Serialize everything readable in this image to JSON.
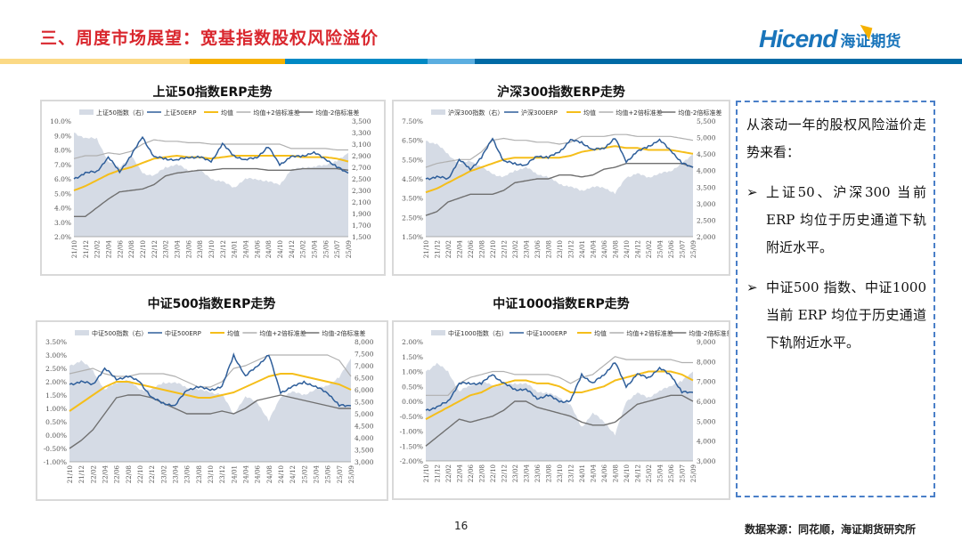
{
  "header": {
    "title": "三、周度市场展望：宽基指数股权风险溢价",
    "logo_en": "Hicend",
    "logo_cn": "海证期货"
  },
  "colors": {
    "index_fill": "#d5dbe5",
    "erp": "#2e5e9a",
    "mean": "#f5be1a",
    "upper": "#b0b0b0",
    "lower": "#707070",
    "accent": "#d9272e"
  },
  "x_ticks": [
    "21/10",
    "21/12",
    "22/02",
    "22/04",
    "22/06",
    "22/08",
    "22/10",
    "22/12",
    "23/02",
    "23/04",
    "23/06",
    "23/08",
    "23/10",
    "23/12",
    "24/01",
    "24/04",
    "24/06",
    "24/08",
    "24/10",
    "24/12",
    "25/02",
    "25/04",
    "25/06",
    "25/07",
    "25/09"
  ],
  "chart_data": [
    {
      "type": "line",
      "title": "上证50指数ERP走势",
      "legend": [
        "上证50指数（右）",
        "上证50ERP",
        "均值",
        "均值+2倍标准差",
        "均值-2倍标准差"
      ],
      "ylim": [
        2,
        10
      ],
      "yticks": [
        "10.0%",
        "9.0%",
        "8.0%",
        "7.0%",
        "6.0%",
        "5.0%",
        "4.0%",
        "3.0%",
        "2.0%"
      ],
      "y2lim": [
        1500,
        3500
      ],
      "y2ticks": [
        "3,500",
        "3,300",
        "3,100",
        "2,900",
        "2,700",
        "2,500",
        "2,300",
        "2,100",
        "1,900",
        "1,700",
        "1,500"
      ],
      "index": [
        3300,
        3200,
        3200,
        2800,
        2700,
        2900,
        2600,
        2550,
        2700,
        2750,
        2650,
        2650,
        2500,
        2450,
        2350,
        2500,
        2500,
        2450,
        2400,
        2650,
        2700,
        2700,
        2750,
        2800,
        2950
      ],
      "erp": [
        6.0,
        6.4,
        6.5,
        7.5,
        6.5,
        7.6,
        8.9,
        7.5,
        7.4,
        7.3,
        7.5,
        7.5,
        7.2,
        8.4,
        7.6,
        7.3,
        7.5,
        8.2,
        7.0,
        7.5,
        7.6,
        7.8,
        7.4,
        6.8,
        6.4
      ],
      "mean": [
        5.2,
        5.5,
        5.9,
        6.3,
        6.6,
        6.8,
        7.1,
        7.4,
        7.5,
        7.6,
        7.5,
        7.5,
        7.4,
        7.5,
        7.6,
        7.6,
        7.6,
        7.6,
        7.6,
        7.6,
        7.5,
        7.5,
        7.5,
        7.4,
        7.2
      ],
      "upper": [
        7.4,
        7.6,
        7.6,
        7.8,
        7.7,
        7.9,
        8.4,
        8.7,
        8.6,
        8.6,
        8.5,
        8.5,
        8.4,
        8.4,
        8.4,
        8.4,
        8.4,
        8.4,
        8.4,
        8.1,
        8.1,
        8.1,
        8.1,
        8.0,
        8.0
      ],
      "lower": [
        3.4,
        3.4,
        4.0,
        4.6,
        5.1,
        5.2,
        5.3,
        5.6,
        6.2,
        6.4,
        6.5,
        6.6,
        6.6,
        6.7,
        6.7,
        6.7,
        6.7,
        6.6,
        6.6,
        6.6,
        6.7,
        6.7,
        6.7,
        6.7,
        6.6
      ]
    },
    {
      "type": "line",
      "title": "沪深300指数ERP走势",
      "legend": [
        "沪深300指数（右）",
        "沪深300ERP",
        "均值",
        "均值+2倍标准差",
        "均值-2倍标准差"
      ],
      "ylim": [
        1.5,
        7.5
      ],
      "yticks": [
        "7.50%",
        "6.50%",
        "5.50%",
        "4.50%",
        "3.50%",
        "2.50%",
        "1.50%"
      ],
      "y2lim": [
        2000,
        5500
      ],
      "y2ticks": [
        "5,500",
        "5,000",
        "4,500",
        "4,000",
        "3,500",
        "3,000",
        "2,500",
        "2,000"
      ],
      "index": [
        4900,
        4800,
        4500,
        4200,
        4300,
        4100,
        3900,
        3800,
        4000,
        4100,
        3900,
        3800,
        3600,
        3500,
        3400,
        3500,
        3500,
        3300,
        3800,
        3900,
        3800,
        3900,
        4000,
        4200,
        4500
      ],
      "erp": [
        4.5,
        4.6,
        4.5,
        5.5,
        5.0,
        5.6,
        6.6,
        5.4,
        5.3,
        5.2,
        5.7,
        5.6,
        5.9,
        6.5,
        6.4,
        6.0,
        6.1,
        6.6,
        5.4,
        5.9,
        6.2,
        6.5,
        6.0,
        5.3,
        5.1
      ],
      "mean": [
        3.8,
        4.0,
        4.3,
        4.6,
        4.9,
        5.1,
        5.3,
        5.5,
        5.6,
        5.6,
        5.6,
        5.6,
        5.6,
        5.7,
        5.9,
        6.0,
        6.1,
        6.2,
        6.1,
        6.1,
        6.0,
        6.0,
        6.0,
        5.9,
        5.8
      ],
      "upper": [
        5.1,
        5.3,
        5.4,
        5.5,
        5.5,
        5.9,
        6.5,
        6.6,
        6.5,
        6.5,
        6.4,
        6.4,
        6.3,
        6.4,
        6.7,
        6.7,
        6.7,
        6.8,
        6.8,
        6.7,
        6.7,
        6.7,
        6.7,
        6.6,
        6.5
      ],
      "lower": [
        2.6,
        2.8,
        3.3,
        3.5,
        3.7,
        3.7,
        3.7,
        3.9,
        4.3,
        4.4,
        4.5,
        4.5,
        4.7,
        4.7,
        4.6,
        4.7,
        5.0,
        5.1,
        5.3,
        5.3,
        5.3,
        5.3,
        5.3,
        5.3,
        5.1
      ]
    },
    {
      "type": "line",
      "title": "中证500指数ERP走势",
      "legend": [
        "中证500指数（右）",
        "中证500ERP",
        "均值",
        "均值+2倍标准差",
        "均值-2倍标准差"
      ],
      "ylim": [
        -1,
        3.5
      ],
      "yticks": [
        "3.50%",
        "3.00%",
        "2.50%",
        "2.00%",
        "1.50%",
        "1.00%",
        "0.50%",
        "0.00%",
        "-0.50%",
        "-1.00%"
      ],
      "y2lim": [
        3000,
        8000
      ],
      "y2ticks": [
        "8,000",
        "7,500",
        "7,000",
        "6,500",
        "6,000",
        "5,500",
        "5,000",
        "4,500",
        "4,000",
        "3,500",
        "3,000"
      ],
      "index": [
        7000,
        7200,
        6800,
        6000,
        6300,
        6400,
        6000,
        6000,
        6300,
        6300,
        6100,
        6000,
        5900,
        5800,
        5000,
        5700,
        5500,
        4700,
        5700,
        5900,
        5800,
        6000,
        6200,
        6500,
        7300
      ],
      "erp": [
        1.9,
        2.0,
        1.9,
        2.5,
        2.1,
        2.2,
        2.0,
        1.4,
        1.2,
        1.1,
        1.7,
        1.8,
        1.7,
        1.8,
        3.0,
        2.2,
        2.6,
        3.0,
        1.6,
        1.8,
        2.0,
        1.8,
        1.6,
        1.1,
        1.1
      ],
      "mean": [
        0.9,
        1.2,
        1.5,
        1.8,
        2.0,
        2.0,
        1.9,
        1.8,
        1.7,
        1.6,
        1.5,
        1.4,
        1.4,
        1.5,
        1.6,
        1.8,
        2.0,
        2.2,
        2.3,
        2.3,
        2.2,
        2.1,
        2.0,
        1.9,
        1.7
      ],
      "upper": [
        2.3,
        2.4,
        2.5,
        2.3,
        2.2,
        2.2,
        2.3,
        2.3,
        2.3,
        2.2,
        2.0,
        1.8,
        1.8,
        2.0,
        2.5,
        2.6,
        2.8,
        3.0,
        3.0,
        3.0,
        3.0,
        3.0,
        3.0,
        2.8,
        2.2
      ],
      "lower": [
        -0.5,
        -0.2,
        0.2,
        0.8,
        1.4,
        1.5,
        1.5,
        1.4,
        1.2,
        1.0,
        0.8,
        0.8,
        0.8,
        0.9,
        0.8,
        1.0,
        1.3,
        1.4,
        1.5,
        1.4,
        1.3,
        1.2,
        1.1,
        1.0,
        1.0
      ]
    },
    {
      "type": "line",
      "title": "中证1000指数ERP走势",
      "legend": [
        "中证1000指数（右）",
        "中证1000ERP",
        "均值",
        "均值+2倍标准差",
        "均值-2倍标准差"
      ],
      "ylim": [
        -2,
        2
      ],
      "yticks": [
        "2.00%",
        "1.50%",
        "1.00%",
        "0.50%",
        "0.00%",
        "-0.50%",
        "-1.00%",
        "-1.50%",
        "-2.00%"
      ],
      "y2lim": [
        3000,
        9000
      ],
      "y2ticks": [
        "9,000",
        "8,000",
        "7,000",
        "6,000",
        "5,000",
        "4,000",
        "3,000"
      ],
      "index": [
        7500,
        7900,
        7500,
        6500,
        6800,
        7000,
        6800,
        6800,
        6900,
        6900,
        6500,
        6400,
        6200,
        5800,
        4700,
        5400,
        5000,
        4300,
        6000,
        6400,
        6200,
        6500,
        6800,
        7000,
        7500
      ],
      "erp": [
        -0.3,
        -0.2,
        0.0,
        0.6,
        0.6,
        0.6,
        0.9,
        0.6,
        0.4,
        0.4,
        0.1,
        0.2,
        0.0,
        0.0,
        0.9,
        0.6,
        0.9,
        1.3,
        0.5,
        0.9,
        0.8,
        1.1,
        0.9,
        0.3,
        0.3
      ],
      "mean": [
        -0.6,
        -0.4,
        -0.2,
        0.0,
        0.2,
        0.3,
        0.5,
        0.6,
        0.7,
        0.7,
        0.6,
        0.6,
        0.5,
        0.3,
        0.3,
        0.4,
        0.5,
        0.7,
        0.8,
        0.9,
        1.0,
        1.0,
        1.0,
        0.9,
        0.7
      ],
      "upper": [
        0.2,
        0.2,
        0.2,
        0.6,
        0.8,
        0.9,
        1.0,
        1.0,
        0.9,
        0.9,
        0.9,
        0.9,
        0.8,
        0.6,
        0.8,
        0.9,
        1.2,
        1.5,
        1.4,
        1.4,
        1.4,
        1.4,
        1.4,
        1.3,
        1.3
      ],
      "lower": [
        -1.5,
        -1.2,
        -0.9,
        -0.6,
        -0.7,
        -0.6,
        -0.5,
        -0.3,
        0.0,
        0.0,
        -0.2,
        -0.3,
        -0.4,
        -0.5,
        -0.7,
        -0.8,
        -0.8,
        -0.7,
        -0.4,
        -0.1,
        0.0,
        0.1,
        0.2,
        0.2,
        0.0
      ]
    }
  ],
  "summary": {
    "intro": "从滚动一年的股权风险溢价走势来看：",
    "bullet_mark": "➢",
    "bullets": [
      "上证50、沪深300 当前ERP 均位于历史通道下轨附近水平。",
      "中证500 指数、中证1000当前 ERP 均位于历史通道下轨附近水平。"
    ]
  },
  "footer": {
    "page": "16",
    "source": "数据来源：同花顺，海证期货研究所"
  }
}
